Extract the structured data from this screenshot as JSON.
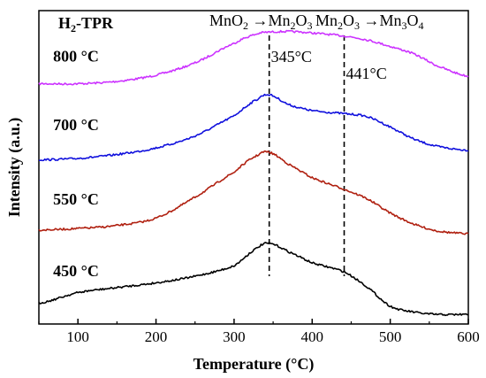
{
  "chart_data": {
    "type": "line",
    "panel_title": "H2-TPR",
    "xlabel": "Temperature (°C)",
    "ylabel": "Intensity (a.u.)",
    "xlim": [
      50,
      600
    ],
    "x_ticks": [
      100,
      200,
      300,
      400,
      500,
      600
    ],
    "y_ticks_labeled": false,
    "grid": false,
    "legend": "none",
    "series": [
      {
        "name": "800 °C",
        "color": "#cc33ff",
        "x": [
          50,
          100,
          150,
          200,
          250,
          300,
          330,
          345,
          370,
          400,
          441,
          470,
          500,
          530,
          560,
          600
        ],
        "y": [
          8.05,
          8.05,
          8.13,
          8.34,
          8.75,
          9.4,
          9.72,
          9.78,
          9.8,
          9.75,
          9.65,
          9.52,
          9.3,
          9.05,
          8.65,
          8.3
        ]
      },
      {
        "name": "700 °C",
        "color": "#1010dd",
        "x": [
          50,
          100,
          150,
          200,
          250,
          300,
          330,
          345,
          370,
          400,
          441,
          470,
          500,
          530,
          560,
          600
        ],
        "y": [
          5.5,
          5.55,
          5.68,
          5.9,
          6.3,
          6.97,
          7.53,
          7.68,
          7.35,
          7.15,
          7.05,
          6.95,
          6.6,
          6.2,
          5.95,
          5.82
        ]
      },
      {
        "name": "550 °C",
        "color": "#b02010",
        "x": [
          50,
          100,
          150,
          200,
          250,
          300,
          330,
          345,
          370,
          400,
          441,
          470,
          500,
          530,
          560,
          600
        ],
        "y": [
          3.15,
          3.2,
          3.3,
          3.55,
          4.25,
          5.08,
          5.65,
          5.75,
          5.35,
          4.9,
          4.52,
          4.2,
          3.72,
          3.35,
          3.12,
          3.02
        ]
      },
      {
        "name": "450 °C",
        "color": "#000000",
        "x": [
          50,
          100,
          150,
          200,
          250,
          300,
          330,
          345,
          370,
          400,
          441,
          470,
          500,
          530,
          560,
          600
        ],
        "y": [
          0.7,
          1.05,
          1.22,
          1.38,
          1.6,
          1.95,
          2.55,
          2.7,
          2.42,
          2.05,
          1.75,
          1.25,
          0.6,
          0.4,
          0.32,
          0.32
        ]
      }
    ],
    "series_labels": [
      {
        "text": "800 °C",
        "anchor_x": 100,
        "anchor_y": 8.8
      },
      {
        "text": "700 °C",
        "anchor_x": 100,
        "anchor_y": 6.5
      },
      {
        "text": "550 °C",
        "anchor_x": 100,
        "anchor_y": 4.0
      },
      {
        "text": "450 °C",
        "anchor_x": 100,
        "anchor_y": 1.6
      }
    ],
    "vlines": [
      {
        "x": 345,
        "label": "345°C",
        "style": "dashed"
      },
      {
        "x": 441,
        "label": "441°C",
        "style": "dashed"
      }
    ],
    "annotations": {
      "transition_1": {
        "base": "MnO",
        "sub1": "2",
        "arrow": "→Mn",
        "sub2": "2",
        "tail": "O",
        "sub3": "3"
      },
      "transition_2": {
        "base": "Mn",
        "sub1": "2",
        "mid": "O",
        "sub2": "3",
        "arrow": "→Mn",
        "sub3": "3",
        "tail": "O",
        "sub4": "4"
      }
    }
  }
}
